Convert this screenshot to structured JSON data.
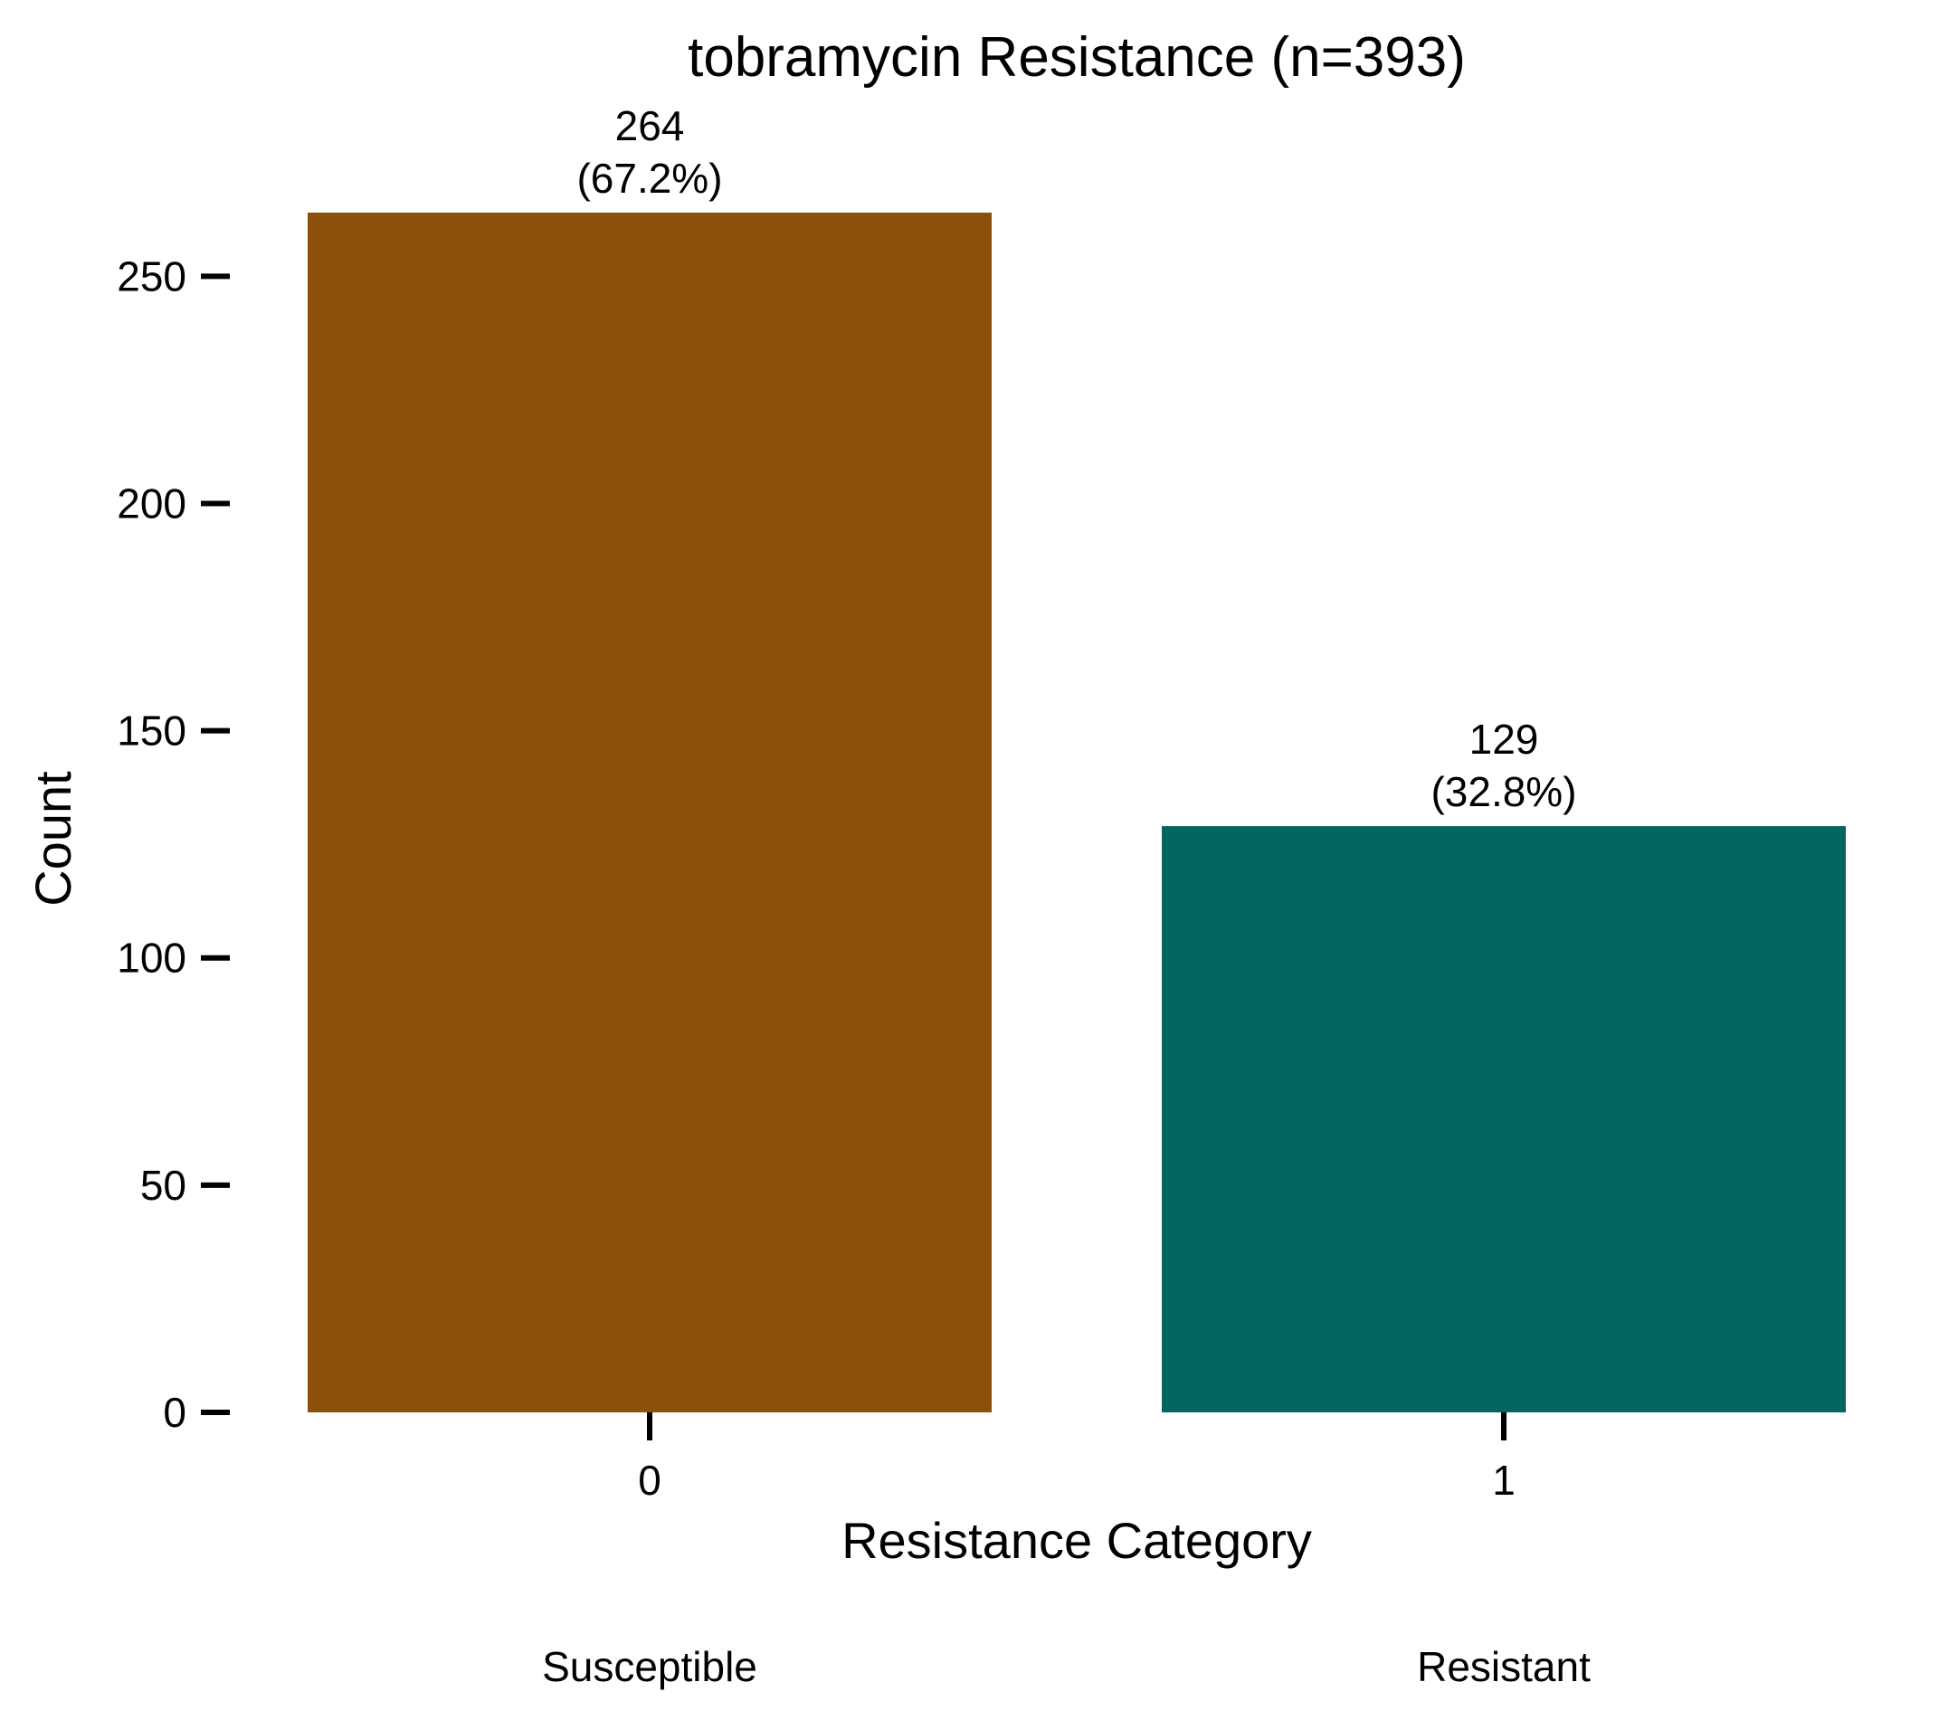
{
  "chart_data": {
    "type": "bar",
    "title": "tobramycin Resistance (n=393)",
    "xlabel": "Resistance Category",
    "ylabel": "Count",
    "categories": [
      "0",
      "1"
    ],
    "category_names": [
      "Susceptible",
      "Resistant"
    ],
    "values": [
      264,
      129
    ],
    "value_labels": [
      "264",
      "129"
    ],
    "percent_labels": [
      "(67.2%)",
      "(32.8%)"
    ],
    "colors": [
      "#8B510C",
      "#03665E"
    ],
    "yticks": [
      "0",
      "50",
      "100",
      "150",
      "200",
      "250"
    ],
    "ytick_values": [
      0,
      50,
      100,
      150,
      200,
      250
    ],
    "ylim": [
      0,
      264
    ],
    "grid": false,
    "legend": "none"
  }
}
